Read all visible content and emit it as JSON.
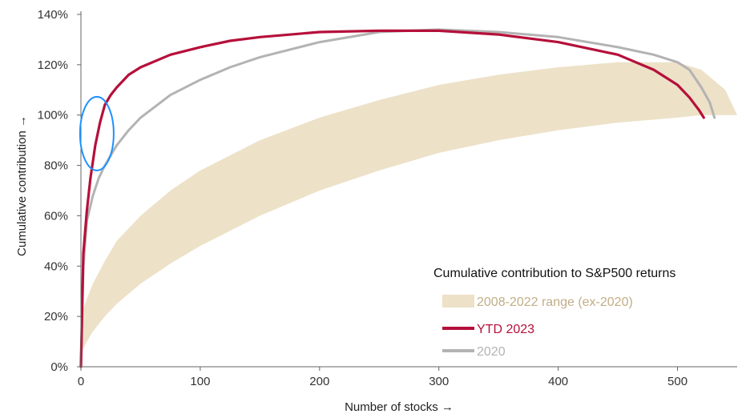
{
  "chart_data": {
    "type": "line",
    "xlabel": "Number of stocks →",
    "ylabel": "Cumulative contribution →",
    "xlim": [
      0,
      550
    ],
    "ylim": [
      0,
      140
    ],
    "x_ticks": [
      "0",
      "100",
      "200",
      "300",
      "400",
      "500"
    ],
    "x_tick_values": [
      0,
      100,
      200,
      300,
      400,
      500
    ],
    "y_ticks": [
      "0%",
      "20%",
      "40%",
      "60%",
      "80%",
      "100%",
      "120%",
      "140%"
    ],
    "y_tick_values": [
      0,
      20,
      40,
      60,
      80,
      100,
      120,
      140
    ],
    "grid": false,
    "legend": {
      "title": "Cumulative contribution to S&P500 returns",
      "placement": "bottom-right"
    },
    "series": [
      {
        "name": "2008-2022 range (ex-2020)",
        "kind": "band",
        "color": "#ede1c8",
        "text_color": "#c2ad86",
        "x": [
          0,
          5,
          10,
          20,
          30,
          50,
          75,
          100,
          150,
          200,
          250,
          300,
          350,
          400,
          450,
          500,
          520,
          540,
          550
        ],
        "upper": [
          20,
          27,
          33,
          42,
          50,
          60,
          70,
          78,
          90,
          99,
          106,
          112,
          116,
          119,
          121,
          121,
          118,
          110,
          100
        ],
        "lower": [
          5,
          10,
          14,
          20,
          25,
          33,
          41,
          48,
          60,
          70,
          78,
          85,
          90,
          94,
          97,
          99,
          100,
          100,
          100
        ]
      },
      {
        "name": "YTD 2023",
        "kind": "line",
        "color": "#b5103a",
        "x": [
          0,
          2,
          5,
          8,
          12,
          16,
          20,
          25,
          30,
          40,
          50,
          75,
          100,
          125,
          150,
          200,
          250,
          300,
          350,
          400,
          450,
          480,
          500,
          510,
          518,
          522
        ],
        "y": [
          0,
          45,
          62,
          75,
          88,
          97,
          104,
          108,
          111,
          116,
          119,
          124,
          127,
          129.5,
          131,
          133,
          133.5,
          133.5,
          132,
          129,
          124,
          118,
          112,
          107,
          102,
          99
        ]
      },
      {
        "name": "2020",
        "kind": "line",
        "color": "#b3b3b3",
        "x": [
          0,
          2,
          5,
          10,
          15,
          20,
          30,
          40,
          50,
          75,
          100,
          125,
          150,
          200,
          250,
          300,
          350,
          400,
          450,
          480,
          500,
          510,
          520,
          527,
          531
        ],
        "y": [
          0,
          40,
          58,
          68,
          75,
          80,
          88,
          94,
          99,
          108,
          114,
          119,
          123,
          129,
          133,
          134,
          133,
          131,
          127,
          124,
          121,
          118,
          111,
          105,
          99
        ]
      }
    ],
    "annotations": [
      {
        "type": "ellipse",
        "color": "#1e90ff",
        "x": 10,
        "y": 92
      }
    ]
  }
}
